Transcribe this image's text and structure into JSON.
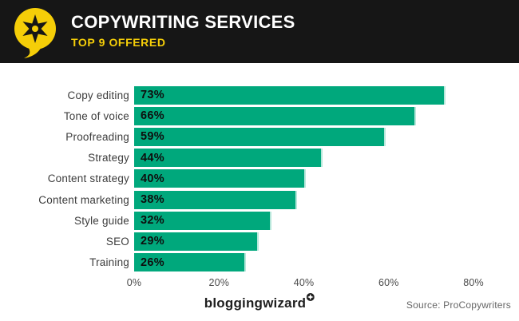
{
  "header": {
    "title": "COPYWRITING SERVICES",
    "subtitle": "TOP 9 OFFERED"
  },
  "chart_data": {
    "type": "bar",
    "orientation": "horizontal",
    "title": "COPYWRITING SERVICES",
    "subtitle": "TOP 9 OFFERED",
    "categories": [
      "Copy editing",
      "Tone of voice",
      "Proofreading",
      "Strategy",
      "Content strategy",
      "Content marketing",
      "Style guide",
      "SEO",
      "Training"
    ],
    "values": [
      73,
      66,
      59,
      44,
      40,
      38,
      32,
      29,
      26
    ],
    "value_labels": [
      "73%",
      "66%",
      "59%",
      "44%",
      "40%",
      "38%",
      "32%",
      "29%",
      "26%"
    ],
    "xlabel": "",
    "ylabel": "",
    "xlim": [
      0,
      80
    ],
    "x_ticks": [
      "0%",
      "20%",
      "40%",
      "60%",
      "80%"
    ],
    "grid": false,
    "legend": false,
    "bar_color": "#00a87c"
  },
  "footer": {
    "brand": "bloggingwizard",
    "source": "Source: ProCopywriters"
  },
  "colors": {
    "header_bg": "#161616",
    "accent_yellow": "#f5ce08",
    "bar_green": "#00a87c",
    "title_text": "#ffffff",
    "category_text": "#3c3c3c",
    "value_text": "#0e0e0e",
    "tick_text": "#4a4a4a",
    "source_text": "#666666"
  }
}
